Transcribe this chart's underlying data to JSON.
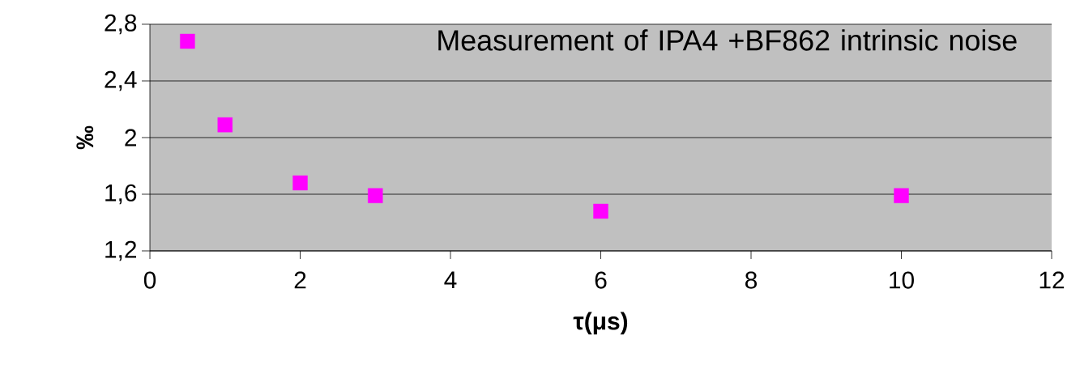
{
  "chart_data": {
    "type": "scatter",
    "title": "Measurement of IPA4 +BF862 intrinsic noise",
    "xlabel": "τ(μs)",
    "ylabel": "‰",
    "x": [
      0.5,
      1,
      2,
      3,
      6,
      10
    ],
    "series": [
      {
        "color": "#ff00ff",
        "values": [
          2.68,
          2.09,
          1.68,
          1.59,
          1.48,
          1.59
        ]
      }
    ],
    "xlim": [
      0,
      12
    ],
    "xticks": [
      0,
      2,
      4,
      6,
      8,
      10,
      12
    ],
    "ylim": [
      1.2,
      2.8
    ],
    "yticks": [
      {
        "value": 1.2,
        "label": "1,2"
      },
      {
        "value": 1.6,
        "label": "1,6"
      },
      {
        "value": 2,
        "label": "2"
      },
      {
        "value": 2.4,
        "label": "2,4"
      },
      {
        "value": 2.8,
        "label": "2,8"
      }
    ],
    "grid": "y",
    "marker": "square"
  }
}
